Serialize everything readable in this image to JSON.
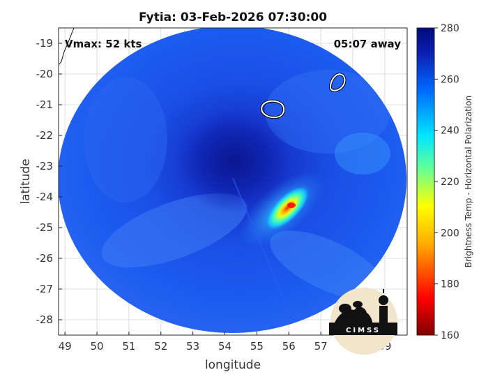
{
  "title": "Fytia: 03-Feb-2026 07:30:00",
  "annotations": {
    "vmax": "Vmax: 52 kts",
    "time_away": "05:07 away"
  },
  "logo": {
    "text": "CIMSS"
  },
  "colorbar": {
    "label": "Brightness Temp - Horizontal Polarization",
    "ticks": [
      "280",
      "260",
      "240",
      "220",
      "200",
      "180",
      "160"
    ]
  },
  "chart_data": {
    "type": "heatmap",
    "title": "Fytia: 03-Feb-2026 07:30:00",
    "xlabel": "longitude",
    "ylabel": "latitude",
    "xlim": [
      48.8,
      59.7
    ],
    "ylim": [
      -28.5,
      -18.5
    ],
    "x_ticks": [
      49,
      50,
      51,
      52,
      53,
      54,
      55,
      56,
      57,
      58,
      59
    ],
    "y_ticks": [
      -19,
      -20,
      -21,
      -22,
      -23,
      -24,
      -25,
      -26,
      -27,
      -28
    ],
    "colorbar_range": [
      160,
      280
    ],
    "colormap": "jet",
    "grid": true,
    "storm_center": {
      "lon": 54.3,
      "lat": -23.0
    },
    "deep_convection_min_temp_K": 165
  }
}
